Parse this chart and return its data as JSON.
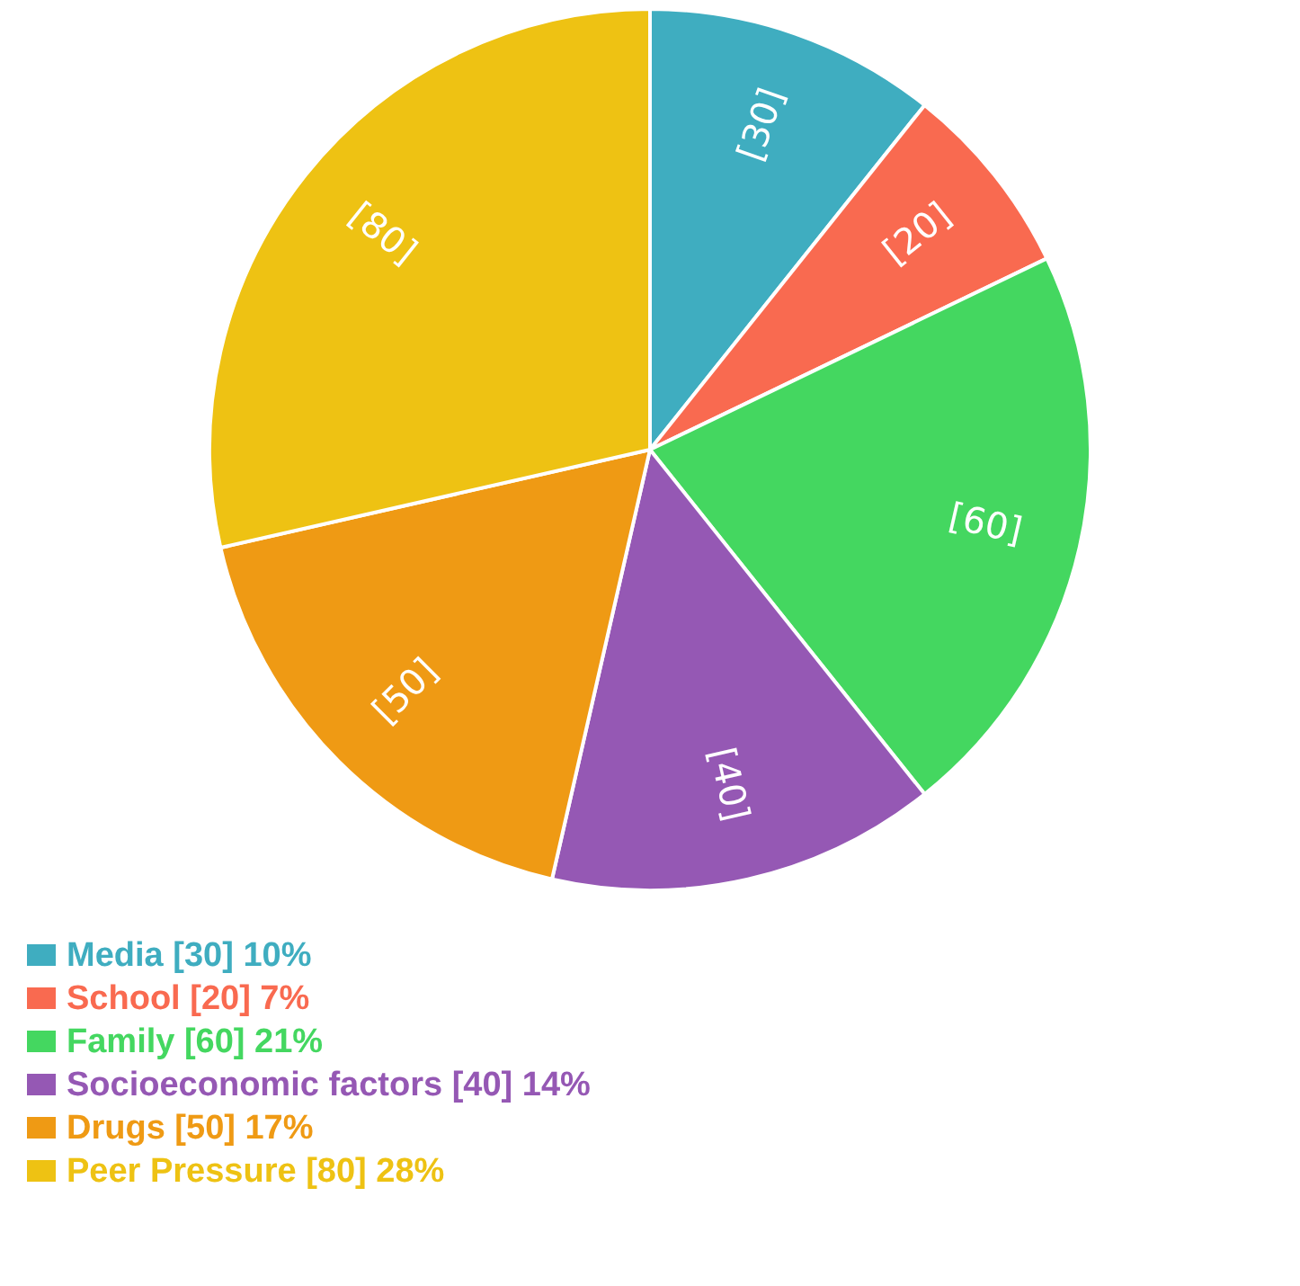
{
  "chart_data": {
    "type": "pie",
    "categories": [
      "Media [30] 10%",
      "School [20] 7%",
      "Family [60] 21%",
      "Socioeconomic factors [40] 14%",
      "Drugs [50] 17%",
      "Peer Pressure [80] 28%"
    ],
    "values": [
      30,
      20,
      60,
      40,
      50,
      80
    ],
    "colors": [
      "#3fadc0",
      "#f96a50",
      "#44d760",
      "#9558b4",
      "#ef9a14",
      "#eec213"
    ],
    "value_labels": [
      "[30]",
      "[20]",
      "[60]",
      "[40]",
      "[50]",
      "[80]"
    ],
    "legend": "bottom left"
  }
}
